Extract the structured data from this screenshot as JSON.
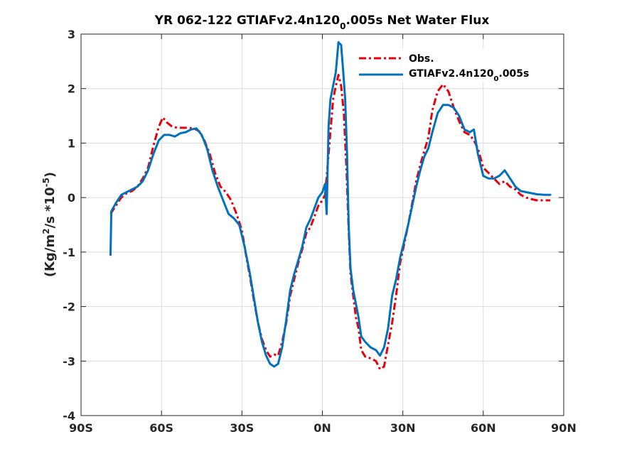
{
  "chart_data": {
    "type": "line",
    "title": "YR 062-122 GTIAFv2.4n120_0.005s  Net Water Flux",
    "title_parts": {
      "main": "YR 062-122 GTIAFv2.4n120",
      "sub": "0",
      "rest": ".005s  Net Water Flux"
    },
    "ylabel_parts": {
      "a": "(Kg/m",
      "sup1": "2",
      "b": "/s *10",
      "sup2": "-5",
      "c": ")"
    },
    "xlim": [
      -90,
      90
    ],
    "ylim": [
      -4,
      3
    ],
    "grid": true,
    "legend_position": "top-right",
    "x_ticks": [
      {
        "value": -90,
        "label": "90S"
      },
      {
        "value": -60,
        "label": "60S"
      },
      {
        "value": -30,
        "label": "30S"
      },
      {
        "value": 0,
        "label": "0N"
      },
      {
        "value": 30,
        "label": "30N"
      },
      {
        "value": 60,
        "label": "60N"
      },
      {
        "value": 90,
        "label": "90N"
      }
    ],
    "y_ticks": [
      {
        "value": 3,
        "label": "3"
      },
      {
        "value": 2,
        "label": "2"
      },
      {
        "value": 1,
        "label": "1"
      },
      {
        "value": 0,
        "label": "0"
      },
      {
        "value": -1,
        "label": "-1"
      },
      {
        "value": -2,
        "label": "-2"
      },
      {
        "value": -3,
        "label": "-3"
      },
      {
        "value": -4,
        "label": "-4"
      }
    ],
    "series": [
      {
        "name": "Obs.",
        "legend_parts": {
          "main": "Obs.",
          "sub": "",
          "rest": ""
        },
        "color": "#e8000b",
        "style": "dashdot",
        "points": [
          [
            -79,
            -0.3
          ],
          [
            -77,
            -0.15
          ],
          [
            -75,
            0.0
          ],
          [
            -73,
            0.08
          ],
          [
            -71,
            0.12
          ],
          [
            -69,
            0.2
          ],
          [
            -67,
            0.35
          ],
          [
            -65,
            0.55
          ],
          [
            -63,
            0.95
          ],
          [
            -61,
            1.3
          ],
          [
            -59.5,
            1.47
          ],
          [
            -58,
            1.38
          ],
          [
            -56,
            1.3
          ],
          [
            -54,
            1.28
          ],
          [
            -51,
            1.28
          ],
          [
            -48,
            1.27
          ],
          [
            -46,
            1.22
          ],
          [
            -44,
            1.05
          ],
          [
            -42,
            0.8
          ],
          [
            -40,
            0.45
          ],
          [
            -38,
            0.2
          ],
          [
            -36,
            0.1
          ],
          [
            -34,
            -0.05
          ],
          [
            -32,
            -0.3
          ],
          [
            -30,
            -0.6
          ],
          [
            -28.5,
            -1.05
          ],
          [
            -27,
            -1.45
          ],
          [
            -25.5,
            -1.9
          ],
          [
            -24,
            -2.3
          ],
          [
            -22.5,
            -2.6
          ],
          [
            -21,
            -2.8
          ],
          [
            -19.5,
            -2.92
          ],
          [
            -18,
            -2.88
          ],
          [
            -16.5,
            -2.9
          ],
          [
            -15,
            -2.65
          ],
          [
            -13.5,
            -2.3
          ],
          [
            -12,
            -1.8
          ],
          [
            -10.5,
            -1.5
          ],
          [
            -9,
            -1.2
          ],
          [
            -7.5,
            -0.95
          ],
          [
            -6,
            -0.65
          ],
          [
            -4.5,
            -0.55
          ],
          [
            -3,
            -0.35
          ],
          [
            -1.5,
            -0.15
          ],
          [
            0,
            -0.05
          ],
          [
            1,
            0.05
          ],
          [
            2,
            0.6
          ],
          [
            3,
            1.2
          ],
          [
            4,
            1.8
          ],
          [
            5,
            2.05
          ],
          [
            6,
            2.25
          ],
          [
            7,
            2.05
          ],
          [
            8,
            1.55
          ],
          [
            9,
            0.5
          ],
          [
            9.8,
            -0.6
          ],
          [
            10.5,
            -1.4
          ],
          [
            11.5,
            -1.8
          ],
          [
            12.5,
            -2.2
          ],
          [
            13.5,
            -2.4
          ],
          [
            14.5,
            -2.8
          ],
          [
            16,
            -2.92
          ],
          [
            18,
            -2.95
          ],
          [
            20,
            -3.0
          ],
          [
            21.5,
            -3.15
          ],
          [
            23,
            -3.1
          ],
          [
            24.5,
            -2.7
          ],
          [
            26,
            -2.3
          ],
          [
            27.5,
            -1.8
          ],
          [
            29,
            -1.2
          ],
          [
            30.5,
            -0.85
          ],
          [
            32,
            -0.5
          ],
          [
            33.5,
            -0.1
          ],
          [
            35,
            0.3
          ],
          [
            36.5,
            0.6
          ],
          [
            38,
            0.85
          ],
          [
            39.5,
            1.1
          ],
          [
            41,
            1.6
          ],
          [
            43,
            1.95
          ],
          [
            45,
            2.08
          ],
          [
            47,
            1.95
          ],
          [
            49,
            1.65
          ],
          [
            51,
            1.4
          ],
          [
            53,
            1.2
          ],
          [
            55,
            1.15
          ],
          [
            56.5,
            1.05
          ],
          [
            58,
            0.9
          ],
          [
            60,
            0.55
          ],
          [
            62,
            0.45
          ],
          [
            64,
            0.35
          ],
          [
            66,
            0.25
          ],
          [
            68,
            0.3
          ],
          [
            70,
            0.2
          ],
          [
            72,
            0.15
          ],
          [
            74,
            0.05
          ],
          [
            76,
            0.0
          ],
          [
            78,
            -0.03
          ],
          [
            80,
            -0.05
          ],
          [
            83,
            -0.05
          ],
          [
            85,
            -0.05
          ]
        ]
      },
      {
        "name": "GTIAFv2.4n120_0.005s",
        "legend_parts": {
          "main": "GTIAFv2.4n120",
          "sub": "0",
          "rest": ".005s"
        },
        "color": "#0072bd",
        "style": "solid",
        "points": [
          [
            -79,
            -1.05
          ],
          [
            -78.7,
            -0.25
          ],
          [
            -77,
            -0.1
          ],
          [
            -75,
            0.05
          ],
          [
            -73,
            0.1
          ],
          [
            -71,
            0.15
          ],
          [
            -69,
            0.2
          ],
          [
            -67,
            0.3
          ],
          [
            -65,
            0.5
          ],
          [
            -63,
            0.8
          ],
          [
            -61,
            1.05
          ],
          [
            -59,
            1.15
          ],
          [
            -57,
            1.15
          ],
          [
            -55,
            1.12
          ],
          [
            -53,
            1.18
          ],
          [
            -51,
            1.2
          ],
          [
            -49,
            1.25
          ],
          [
            -47,
            1.27
          ],
          [
            -45,
            1.15
          ],
          [
            -43,
            0.9
          ],
          [
            -41,
            0.5
          ],
          [
            -39,
            0.2
          ],
          [
            -37,
            -0.05
          ],
          [
            -35,
            -0.3
          ],
          [
            -33,
            -0.38
          ],
          [
            -31,
            -0.5
          ],
          [
            -29,
            -0.9
          ],
          [
            -27,
            -1.4
          ],
          [
            -25.5,
            -1.85
          ],
          [
            -24,
            -2.3
          ],
          [
            -22.5,
            -2.65
          ],
          [
            -21,
            -2.9
          ],
          [
            -19.5,
            -3.05
          ],
          [
            -18,
            -3.1
          ],
          [
            -16.5,
            -3.05
          ],
          [
            -15,
            -2.75
          ],
          [
            -13.5,
            -2.25
          ],
          [
            -12,
            -1.7
          ],
          [
            -10.5,
            -1.4
          ],
          [
            -9,
            -1.15
          ],
          [
            -7.5,
            -0.9
          ],
          [
            -6,
            -0.55
          ],
          [
            -4.5,
            -0.4
          ],
          [
            -3,
            -0.2
          ],
          [
            -1.5,
            0.0
          ],
          [
            0,
            0.1
          ],
          [
            1,
            0.25
          ],
          [
            1.6,
            -0.3
          ],
          [
            2.3,
            1.3
          ],
          [
            3,
            1.8
          ],
          [
            4,
            2.05
          ],
          [
            5,
            2.3
          ],
          [
            6,
            2.85
          ],
          [
            7,
            2.8
          ],
          [
            7.8,
            2.3
          ],
          [
            8.5,
            1.8
          ],
          [
            9.2,
            0.8
          ],
          [
            9.8,
            -0.5
          ],
          [
            10.5,
            -1.3
          ],
          [
            11.5,
            -1.7
          ],
          [
            12.5,
            -1.95
          ],
          [
            13.5,
            -2.2
          ],
          [
            14.5,
            -2.55
          ],
          [
            16,
            -2.65
          ],
          [
            18,
            -2.75
          ],
          [
            20,
            -2.8
          ],
          [
            21.5,
            -2.9
          ],
          [
            23,
            -2.75
          ],
          [
            24.5,
            -2.4
          ],
          [
            26,
            -1.8
          ],
          [
            27.5,
            -1.5
          ],
          [
            29,
            -1.1
          ],
          [
            30.5,
            -0.8
          ],
          [
            32,
            -0.5
          ],
          [
            33.5,
            -0.15
          ],
          [
            35,
            0.2
          ],
          [
            36.5,
            0.5
          ],
          [
            38,
            0.75
          ],
          [
            39.5,
            0.9
          ],
          [
            41,
            1.2
          ],
          [
            43,
            1.55
          ],
          [
            45,
            1.7
          ],
          [
            47,
            1.7
          ],
          [
            49,
            1.65
          ],
          [
            51,
            1.5
          ],
          [
            53,
            1.25
          ],
          [
            55,
            1.2
          ],
          [
            56.5,
            1.25
          ],
          [
            58,
            0.8
          ],
          [
            60,
            0.4
          ],
          [
            62,
            0.35
          ],
          [
            64,
            0.35
          ],
          [
            66,
            0.4
          ],
          [
            68,
            0.5
          ],
          [
            70,
            0.35
          ],
          [
            72,
            0.2
          ],
          [
            74,
            0.12
          ],
          [
            76,
            0.1
          ],
          [
            78,
            0.08
          ],
          [
            80,
            0.06
          ],
          [
            83,
            0.05
          ],
          [
            85,
            0.05
          ]
        ]
      }
    ]
  }
}
